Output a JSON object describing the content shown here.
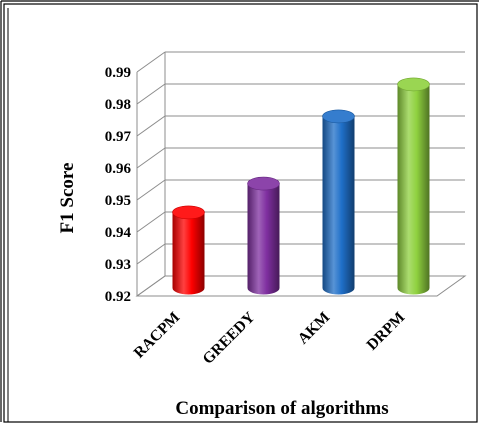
{
  "chart_data": {
    "type": "bar",
    "title": "",
    "xlabel": "Comparison of algorithms",
    "ylabel": "F1 Score",
    "categories": [
      "RACPM",
      "GREEDY",
      "AKM",
      "DRPM"
    ],
    "values": [
      0.943,
      0.952,
      0.973,
      0.983
    ],
    "ylim": [
      0.92,
      0.99
    ],
    "yticks": [
      "0.99",
      "0.98",
      "0.97",
      "0.96",
      "0.95",
      "0.94",
      "0.93",
      "0.92"
    ],
    "grid": true,
    "legend": "none",
    "style": "3d-cylinder",
    "colors": [
      "#ff0000",
      "#7f2fa0",
      "#1f6fc8",
      "#8fd13f"
    ]
  }
}
